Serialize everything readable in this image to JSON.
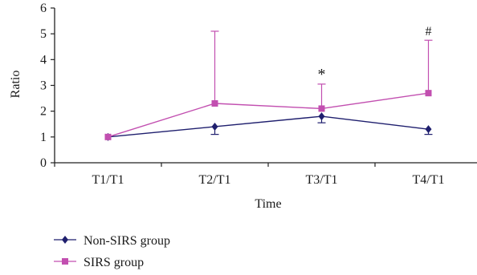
{
  "chart_data": {
    "type": "line",
    "title": "",
    "xlabel": "Time",
    "ylabel": "Ratio",
    "categories": [
      "T1/T1",
      "T2/T1",
      "T3/T1",
      "T4/T1"
    ],
    "ylim": [
      0,
      6
    ],
    "yticks": [
      "0",
      "1",
      "2",
      "3",
      "4",
      "5",
      "6"
    ],
    "grid": false,
    "legend_position": "bottom-left",
    "series": [
      {
        "name": "Non-SIRS group",
        "values": [
          1.0,
          1.4,
          1.8,
          1.3
        ],
        "error_low": [
          0.0,
          0.3,
          0.25,
          0.2
        ],
        "error_high": [
          0.0,
          0.0,
          0.0,
          0.0
        ],
        "color": "#1f1f6e",
        "marker": "diamond"
      },
      {
        "name": "SIRS group",
        "values": [
          1.0,
          2.3,
          2.1,
          2.7
        ],
        "error_low": [
          0.0,
          0.0,
          0.0,
          0.0
        ],
        "error_high": [
          0.0,
          2.8,
          0.95,
          2.05
        ],
        "color": "#c24fb0",
        "marker": "square"
      }
    ],
    "annotations": [
      {
        "category": "T3/T1",
        "text": "*"
      },
      {
        "category": "T4/T1",
        "text": "#"
      }
    ]
  }
}
